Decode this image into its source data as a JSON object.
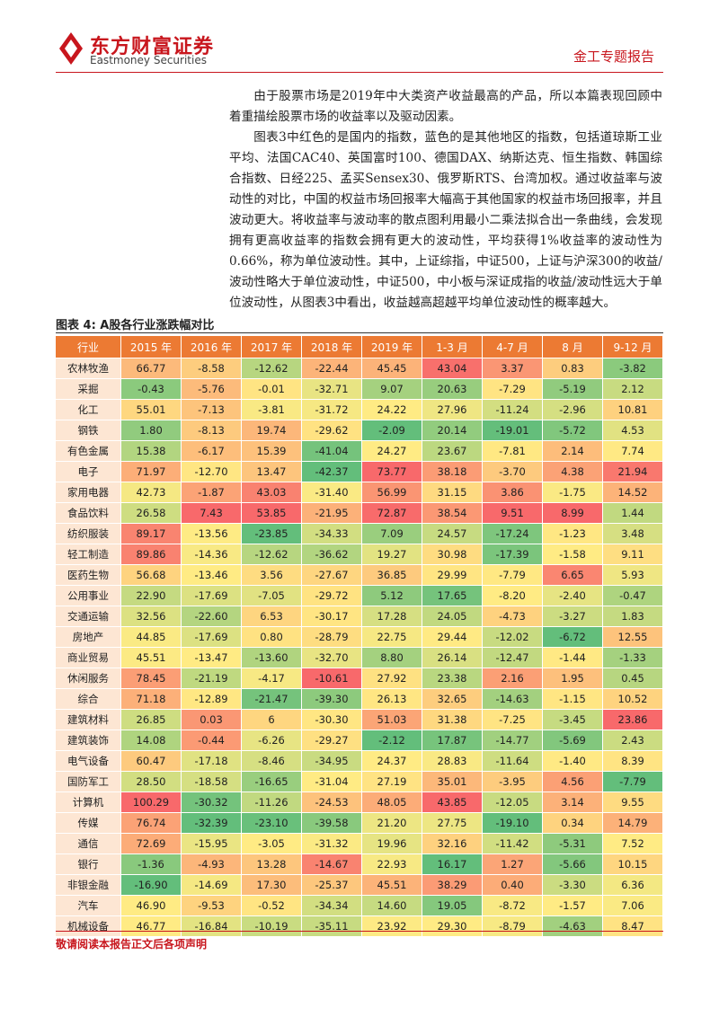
{
  "header": {
    "brand": "东方财富证券",
    "brand_en": "Eastmoney Securities",
    "report_type": "金工专题报告"
  },
  "paragraphs": [
    "由于股票市场是2019年中大类资产收益最高的产品，所以本篇表现回顾中着重描绘股票市场的收益率以及驱动因素。",
    "图表3中红色的是国内的指数，蓝色的是其他地区的指数，包括道琼斯工业平均、法国CAC40、英国富时100、德国DAX、纳斯达克、恒生指数、韩国综合指数、日经225、孟买Sensex30、俄罗斯RTS、台湾加权。通过收益率与波动性的对比，中国的权益市场回报率大幅高于其他国家的权益市场回报率，并且波动更大。将收益率与波动率的散点图利用最小二乘法拟合出一条曲线，会发现拥有更高收益率的指数会拥有更大的波动性，平均获得1%收益率的波动性为0.66%，称为单位波动性。其中，上证综指，中证500，上证与沪深300的收益/波动性略大于单位波动性，中证500，中小板与深证成指的收益/波动性远大于单位波动性，从图表3中看出，收益越高超越平均单位波动性的概率越大。"
  ],
  "table": {
    "title": "图表 4: A股各行业涨跌幅对比",
    "columns": [
      "行业",
      "2015 年",
      "2016 年",
      "2017 年",
      "2018 年",
      "2019 年",
      "1-3 月",
      "4-7 月",
      "8 月",
      "9-12 月"
    ],
    "rows": [
      [
        "农林牧渔",
        "66.77",
        "-8.58",
        "-12.62",
        "-22.44",
        "45.45",
        "43.04",
        "3.37",
        "0.83",
        "-3.82"
      ],
      [
        "采掘",
        "-0.43",
        "-5.76",
        "-0.01",
        "-32.71",
        "9.07",
        "20.63",
        "-7.29",
        "-5.19",
        "2.12"
      ],
      [
        "化工",
        "55.01",
        "-7.13",
        "-3.81",
        "-31.72",
        "24.22",
        "27.96",
        "-11.24",
        "-2.96",
        "10.81"
      ],
      [
        "钢铁",
        "1.80",
        "-8.13",
        "19.74",
        "-29.62",
        "-2.09",
        "20.14",
        "-19.01",
        "-5.72",
        "4.53"
      ],
      [
        "有色金属",
        "15.38",
        "-6.17",
        "15.39",
        "-41.04",
        "24.27",
        "23.67",
        "-7.81",
        "2.14",
        "7.74"
      ],
      [
        "电子",
        "71.97",
        "-12.70",
        "13.47",
        "-42.37",
        "73.77",
        "38.18",
        "-3.70",
        "4.38",
        "21.94"
      ],
      [
        "家用电器",
        "42.73",
        "-1.87",
        "43.03",
        "-31.40",
        "56.99",
        "31.15",
        "3.86",
        "-1.75",
        "14.52"
      ],
      [
        "食品饮料",
        "26.58",
        "7.43",
        "53.85",
        "-21.95",
        "72.87",
        "38.54",
        "9.51",
        "8.99",
        "1.44"
      ],
      [
        "纺织服装",
        "89.17",
        "-13.56",
        "-23.85",
        "-34.33",
        "7.09",
        "24.57",
        "-17.24",
        "-1.23",
        "3.48"
      ],
      [
        "轻工制造",
        "89.86",
        "-14.36",
        "-12.62",
        "-36.62",
        "19.27",
        "30.98",
        "-17.39",
        "-1.58",
        "9.11"
      ],
      [
        "医药生物",
        "56.68",
        "-13.46",
        "3.56",
        "-27.67",
        "36.85",
        "29.99",
        "-7.79",
        "6.65",
        "5.93"
      ],
      [
        "公用事业",
        "22.90",
        "-17.69",
        "-7.05",
        "-29.72",
        "5.12",
        "17.65",
        "-8.20",
        "-2.40",
        "-0.47"
      ],
      [
        "交通运输",
        "32.56",
        "-22.60",
        "6.53",
        "-30.17",
        "17.28",
        "24.05",
        "-4.73",
        "-3.27",
        "1.83"
      ],
      [
        "房地产",
        "44.85",
        "-17.69",
        "0.80",
        "-28.79",
        "22.75",
        "29.44",
        "-12.02",
        "-6.72",
        "12.55"
      ],
      [
        "商业贸易",
        "45.51",
        "-13.47",
        "-13.60",
        "-32.70",
        "8.80",
        "26.14",
        "-12.47",
        "-1.44",
        "-1.33"
      ],
      [
        "休闲服务",
        "78.45",
        "-21.19",
        "-4.17",
        "-10.61",
        "27.92",
        "23.38",
        "2.16",
        "1.95",
        "0.45"
      ],
      [
        "综合",
        "71.18",
        "-12.89",
        "-21.47",
        "-39.30",
        "26.13",
        "32.65",
        "-14.63",
        "-1.15",
        "10.52"
      ],
      [
        "建筑材料",
        "26.85",
        "0.03",
        "6",
        "-30.30",
        "51.03",
        "31.38",
        "-7.25",
        "-3.45",
        "23.86"
      ],
      [
        "建筑装饰",
        "14.08",
        "-0.44",
        "-6.26",
        "-29.27",
        "-2.12",
        "17.87",
        "-14.77",
        "-5.69",
        "2.43"
      ],
      [
        "电气设备",
        "60.47",
        "-17.18",
        "-8.46",
        "-34.95",
        "24.37",
        "28.83",
        "-11.64",
        "-1.40",
        "8.39"
      ],
      [
        "国防军工",
        "28.50",
        "-18.58",
        "-16.65",
        "-31.04",
        "27.19",
        "35.01",
        "-3.95",
        "4.56",
        "-7.79"
      ],
      [
        "计算机",
        "100.29",
        "-30.32",
        "-11.26",
        "-24.53",
        "48.05",
        "43.85",
        "-12.05",
        "3.14",
        "9.55"
      ],
      [
        "传媒",
        "76.74",
        "-32.39",
        "-23.10",
        "-39.58",
        "21.20",
        "27.75",
        "-19.10",
        "0.34",
        "14.79"
      ],
      [
        "通信",
        "72.69",
        "-15.95",
        "-3.05",
        "-31.32",
        "19.96",
        "32.16",
        "-11.42",
        "-5.31",
        "7.52"
      ],
      [
        "银行",
        "-1.36",
        "-4.93",
        "13.28",
        "-14.67",
        "22.93",
        "16.17",
        "1.27",
        "-5.66",
        "10.15"
      ],
      [
        "非银金融",
        "-16.90",
        "-14.69",
        "17.30",
        "-25.37",
        "45.51",
        "38.29",
        "0.40",
        "-3.30",
        "6.36"
      ],
      [
        "汽车",
        "46.90",
        "-9.53",
        "-0.52",
        "-34.34",
        "14.60",
        "19.05",
        "-8.72",
        "-1.57",
        "7.06"
      ],
      [
        "机械设备",
        "46.77",
        "-16.84",
        "-10.19",
        "-35.11",
        "23.92",
        "29.30",
        "-8.79",
        "-4.63",
        "8.47"
      ]
    ]
  },
  "footer": {
    "disclaimer": "敬请阅读本报告正文后各项声明"
  }
}
